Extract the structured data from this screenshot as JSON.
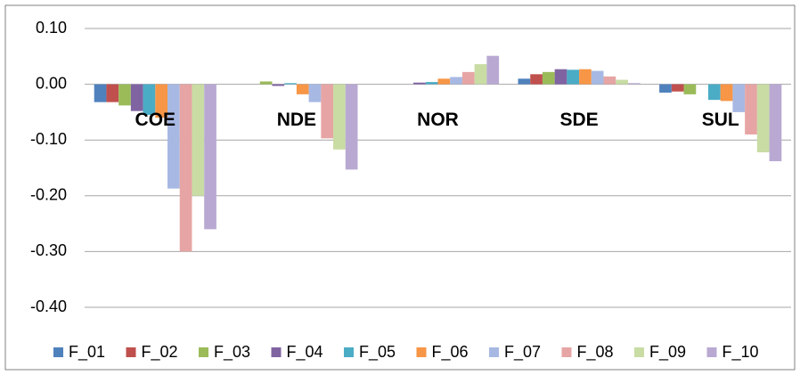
{
  "chart_data": {
    "type": "bar",
    "categories": [
      "COE",
      "NDE",
      "NOR",
      "SDE",
      "SUL"
    ],
    "series": [
      {
        "name": "F_01",
        "color": "#4f81bd",
        "values": [
          -0.032,
          0,
          0,
          0.01,
          -0.015
        ]
      },
      {
        "name": "F_02",
        "color": "#c0504d",
        "values": [
          -0.032,
          0,
          0,
          0.018,
          -0.013
        ]
      },
      {
        "name": "F_03",
        "color": "#9bbb59",
        "values": [
          -0.038,
          0.005,
          0,
          0.022,
          -0.018
        ]
      },
      {
        "name": "F_04",
        "color": "#8064a2",
        "values": [
          -0.048,
          -0.003,
          0.003,
          0.027,
          0
        ]
      },
      {
        "name": "F_05",
        "color": "#4bacc6",
        "values": [
          -0.055,
          0.002,
          0.004,
          0.026,
          -0.028
        ]
      },
      {
        "name": "F_06",
        "color": "#f79646",
        "values": [
          -0.06,
          -0.018,
          0.01,
          0.027,
          -0.03
        ]
      },
      {
        "name": "F_07",
        "color": "#a7b9e3",
        "values": [
          -0.187,
          -0.032,
          0.013,
          0.024,
          -0.05
        ]
      },
      {
        "name": "F_08",
        "color": "#e6a5a4",
        "values": [
          -0.3,
          -0.097,
          0.022,
          0.014,
          -0.09
        ]
      },
      {
        "name": "F_09",
        "color": "#c8dca4",
        "values": [
          -0.2,
          -0.117,
          0.036,
          0.008,
          -0.122
        ]
      },
      {
        "name": "F_10",
        "color": "#b9a9d2",
        "values": [
          -0.26,
          -0.153,
          0.051,
          0.002,
          -0.138
        ]
      }
    ],
    "ylim": [
      -0.4,
      0.1
    ],
    "yticks": [
      {
        "value": 0.1,
        "label": "0.10"
      },
      {
        "value": 0,
        "label": "0.00"
      },
      {
        "value": -0.1,
        "label": "-0.10"
      },
      {
        "value": -0.2,
        "label": "-0.20"
      },
      {
        "value": -0.3,
        "label": "-0.30"
      },
      {
        "value": -0.4,
        "label": "-0.40"
      }
    ],
    "grid": true,
    "legend": "bottom"
  }
}
